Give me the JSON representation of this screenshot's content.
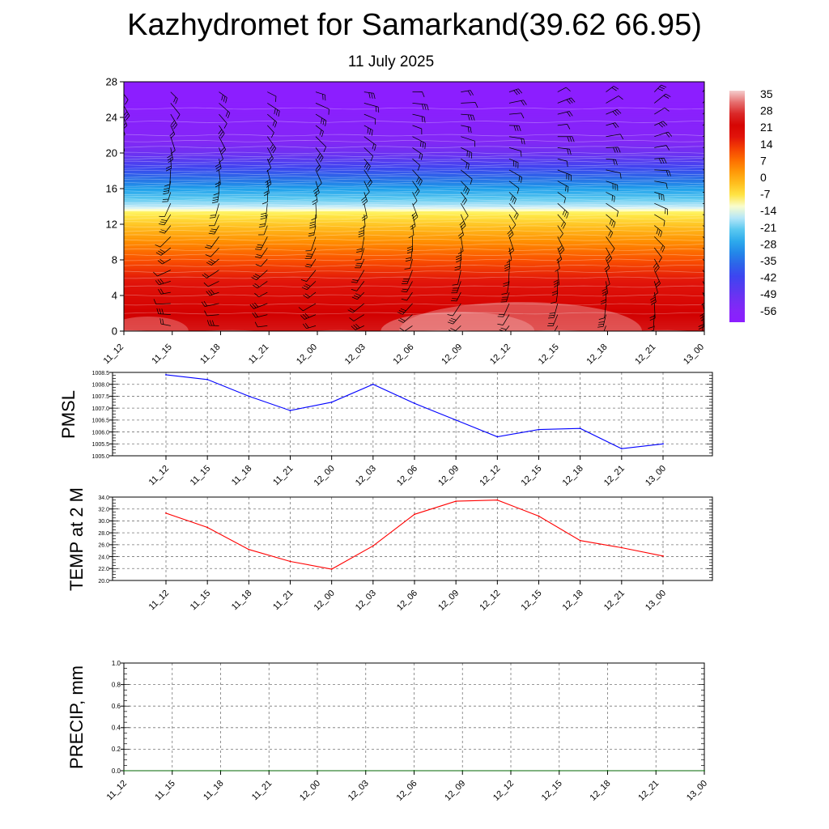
{
  "title": "Kazhydromet for Samarkand(39.62 66.95)",
  "subtitle": "11 July 2025",
  "time_labels": [
    "11_12",
    "11_15",
    "11_18",
    "11_21",
    "12_00",
    "12_03",
    "12_06",
    "12_09",
    "12_12",
    "12_15",
    "12_18",
    "12_21",
    "13_00"
  ],
  "colors": {
    "pmsl_line": "#0000ff",
    "temp_line": "#ff0000",
    "precip_line": "#006400",
    "wind_barb": "#000000"
  },
  "chart_data": [
    {
      "type": "heatmap",
      "y_ticks": [
        "0",
        "4",
        "8",
        "12",
        "16",
        "20",
        "24",
        "28"
      ],
      "ylim": [
        0,
        28
      ],
      "colorbar": {
        "labels": [
          "35",
          "28",
          "21",
          "14",
          "7",
          "0",
          "-7",
          "-14",
          "-21",
          "-28",
          "-35",
          "-42",
          "-49",
          "-56"
        ],
        "range": [
          -63,
          42
        ]
      },
      "temperature_profile": [
        [
          0,
          30
        ],
        [
          2,
          28
        ],
        [
          4,
          24
        ],
        [
          6,
          20
        ],
        [
          8,
          14
        ],
        [
          10,
          7
        ],
        [
          12,
          -1
        ],
        [
          13.5,
          -8
        ],
        [
          14,
          -15
        ],
        [
          16,
          -28
        ],
        [
          18,
          -40
        ],
        [
          20,
          -52
        ],
        [
          22,
          -58
        ],
        [
          25,
          -62
        ],
        [
          28,
          -64
        ]
      ],
      "overlay": "wind barbs"
    },
    {
      "type": "line",
      "ylabel": "PMSL",
      "ylim": [
        1005.0,
        1008.5
      ],
      "y_ticks": [
        "1005.0",
        "1005.5",
        "1006.0",
        "1006.5",
        "1007.0",
        "1007.5",
        "1008.0",
        "1008.5"
      ],
      "x": [
        "11_12",
        "11_15",
        "11_18",
        "11_21",
        "12_00",
        "12_03",
        "12_06",
        "12_09",
        "12_12",
        "12_15",
        "12_18",
        "12_21",
        "13_00"
      ],
      "values": [
        1008.4,
        1008.2,
        1007.5,
        1006.9,
        1007.25,
        1008.0,
        1007.2,
        1006.5,
        1005.8,
        1006.1,
        1006.15,
        1005.3,
        1005.5
      ]
    },
    {
      "type": "line",
      "ylabel": "TEMP at 2 M",
      "ylim": [
        20.0,
        34.0
      ],
      "y_ticks": [
        "20.0",
        "22.0",
        "24.0",
        "26.0",
        "28.0",
        "30.0",
        "32.0",
        "34.0"
      ],
      "x": [
        "11_12",
        "11_15",
        "11_18",
        "11_21",
        "12_00",
        "12_03",
        "12_06",
        "12_09",
        "12_12",
        "12_15",
        "12_18",
        "12_21",
        "13_00"
      ],
      "values": [
        31.3,
        28.9,
        25.2,
        23.2,
        21.9,
        25.8,
        31.1,
        33.3,
        33.5,
        30.8,
        26.7,
        25.5,
        24.1
      ]
    },
    {
      "type": "line",
      "ylabel": "PRECIP, mm",
      "ylim": [
        0.0,
        1.0
      ],
      "y_ticks": [
        "0.0",
        "0.2",
        "0.4",
        "0.6",
        "0.8",
        "1.0"
      ],
      "x": [
        "11_12",
        "11_15",
        "11_18",
        "11_21",
        "12_00",
        "12_03",
        "12_06",
        "12_09",
        "12_12",
        "12_15",
        "12_18",
        "12_21",
        "13_00"
      ],
      "values": [
        0,
        0,
        0,
        0,
        0,
        0,
        0,
        0,
        0,
        0,
        0,
        0,
        0
      ]
    }
  ]
}
